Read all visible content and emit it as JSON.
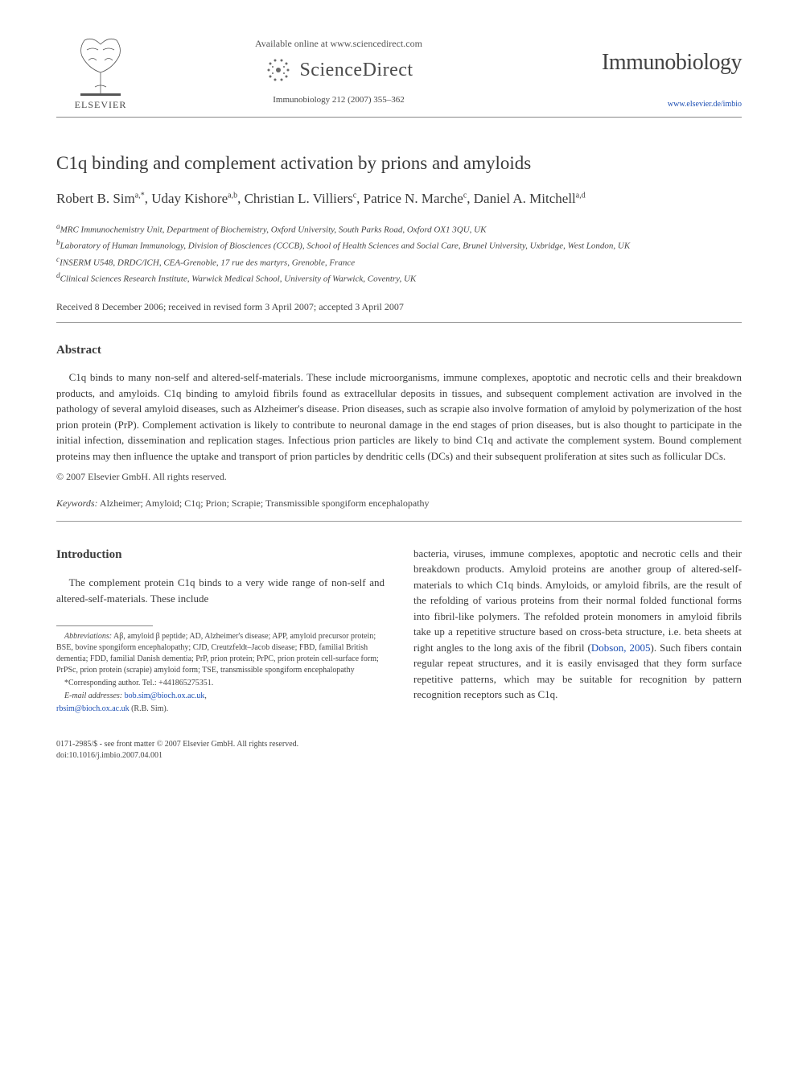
{
  "header": {
    "publisher_name": "ELSEVIER",
    "available_text": "Available online at www.sciencedirect.com",
    "scidirect_name": "ScienceDirect",
    "journal_ref": "Immunobiology 212 (2007) 355–362",
    "journal_name": "Immunobiology",
    "journal_url": "www.elsevier.de/imbio"
  },
  "article": {
    "title": "C1q binding and complement activation by prions and amyloids",
    "authors_html": "Robert B. Sim<sup>a,*</sup>, Uday Kishore<sup>a,b</sup>, Christian L. Villiers<sup>c</sup>, Patrice N. Marche<sup>c</sup>, Daniel A. Mitchell<sup>a,d</sup>",
    "affiliations": [
      "aMRC Immunochemistry Unit, Department of Biochemistry, Oxford University, South Parks Road, Oxford OX1 3QU, UK",
      "bLaboratory of Human Immunology, Division of Biosciences (CCCB), School of Health Sciences and Social Care, Brunel University, Uxbridge, West London, UK",
      "cINSERM U548, DRDC/ICH, CEA-Grenoble, 17 rue des martyrs, Grenoble, France",
      "dClinical Sciences Research Institute, Warwick Medical School, University of Warwick, Coventry, UK"
    ],
    "dates": "Received 8 December 2006; received in revised form 3 April 2007; accepted 3 April 2007"
  },
  "abstract": {
    "heading": "Abstract",
    "body": "C1q binds to many non-self and altered-self-materials. These include microorganisms, immune complexes, apoptotic and necrotic cells and their breakdown products, and amyloids. C1q binding to amyloid fibrils found as extracellular deposits in tissues, and subsequent complement activation are involved in the pathology of several amyloid diseases, such as Alzheimer's disease. Prion diseases, such as scrapie also involve formation of amyloid by polymerization of the host prion protein (PrP). Complement activation is likely to contribute to neuronal damage in the end stages of prion diseases, but is also thought to participate in the initial infection, dissemination and replication stages. Infectious prion particles are likely to bind C1q and activate the complement system. Bound complement proteins may then influence the uptake and transport of prion particles by dendritic cells (DCs) and their subsequent proliferation at sites such as follicular DCs.",
    "copyright": "© 2007 Elsevier GmbH. All rights reserved.",
    "keywords_label": "Keywords:",
    "keywords": "Alzheimer; Amyloid; C1q; Prion; Scrapie; Transmissible spongiform encephalopathy"
  },
  "intro": {
    "heading": "Introduction",
    "left_p": "The complement protein C1q binds to a very wide range of non-self and altered-self-materials. These include",
    "right_p1": "bacteria, viruses, immune complexes, apoptotic and necrotic cells and their breakdown products. Amyloid proteins are another group of altered-self-materials to which C1q binds. Amyloids, or amyloid fibrils, are the result of the refolding of various proteins from their normal folded functional forms into fibril-like polymers. The refolded protein monomers in amyloid fibrils take up a repetitive structure based on cross-beta structure, i.e. beta sheets at right angles to the long axis of the fibril (",
    "right_cite": "Dobson, 2005",
    "right_p2": "). Such fibers contain regular repeat structures, and it is easily envisaged that they form surface repetitive patterns, which may be suitable for recognition by pattern recognition receptors such as C1q."
  },
  "footnotes": {
    "abbrev_label": "Abbreviations:",
    "abbrev_text": " Aβ, amyloid β peptide; AD, Alzheimer's disease; APP, amyloid precursor protein; BSE, bovine spongiform encephalopathy; CJD, Creutzfeldt–Jacob disease; FBD, familial British dementia; FDD, familial Danish dementia; PrP, prion protein; PrPC, prion protein cell-surface form; PrPSc, prion protein (scrapie) amyloid form; TSE, transmissible spongiform encephalopathy",
    "corresponding": "*Corresponding author. Tel.: +441865275351.",
    "email_label": "E-mail addresses:",
    "email1": "bob.sim@bioch.ox.ac.uk",
    "email2": "rbsim@bioch.ox.ac.uk",
    "email_tail": " (R.B. Sim)."
  },
  "bottom": {
    "line1": "0171-2985/$ - see front matter © 2007 Elsevier GmbH. All rights reserved.",
    "line2": "doi:10.1016/j.imbio.2007.04.001"
  },
  "colors": {
    "text": "#3a3a3a",
    "link": "#1a4db3",
    "rule": "#888888",
    "bg": "#ffffff"
  }
}
